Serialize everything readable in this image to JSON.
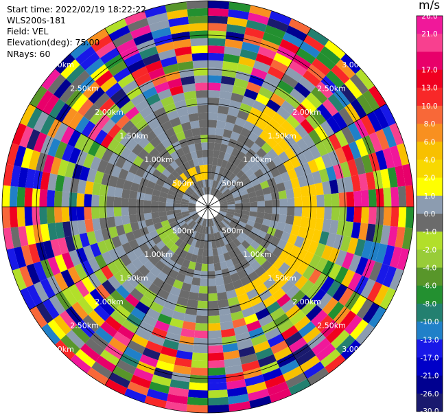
{
  "info": {
    "start_time": "Start time: 2022/02/19 18:22:22",
    "station": "WLS200s-181",
    "field": "Field: VEL",
    "elevation": "Elevation(deg): 75.00",
    "nrays": "NRays: 60"
  },
  "colorbar": {
    "unit": "m/s",
    "bins": [
      {
        "label": "26.0",
        "color": "#f0189a"
      },
      {
        "label": "21.0",
        "color": "#f8408f"
      },
      {
        "label": "",
        "color": "#e8006a"
      },
      {
        "label": "17.0",
        "color": "#f00020"
      },
      {
        "label": "13.0",
        "color": "#f82828"
      },
      {
        "label": "10.0",
        "color": "#f86838"
      },
      {
        "label": "8.0",
        "color": "#f89020"
      },
      {
        "label": "6.0",
        "color": "#f8c000"
      },
      {
        "label": "4.0",
        "color": "#f8d800"
      },
      {
        "label": "2.0",
        "color": "#ffff00"
      },
      {
        "label": "1.0",
        "color": "#8c9cb0"
      },
      {
        "label": "0.0",
        "color": "#6b6b6b"
      },
      {
        "label": "-1.0",
        "color": "#b2df2a"
      },
      {
        "label": "-2.0",
        "color": "#98cc38"
      },
      {
        "label": "-4.0",
        "color": "#58962a"
      },
      {
        "label": "-6.0",
        "color": "#239030"
      },
      {
        "label": "-8.0",
        "color": "#238070"
      },
      {
        "label": "-10.0",
        "color": "#2080c8"
      },
      {
        "label": "-13.0",
        "color": "#1818e8"
      },
      {
        "label": "-17.0",
        "color": "#0000c8"
      },
      {
        "label": "-21.0",
        "color": "#000090"
      },
      {
        "label": "-26.0",
        "color": "#1a1a6e"
      },
      {
        "label": "-30.0",
        "color": ""
      }
    ]
  },
  "chart_data": {
    "type": "polar-ppi",
    "field": "VEL",
    "units": "m/s",
    "nrays": 60,
    "elevation_deg": 75.0,
    "range_rings_km": [
      0.5,
      1.0,
      1.5,
      2.0,
      2.5,
      3.0
    ],
    "ring_labels": [
      "500m",
      "1.00km",
      "1.50km",
      "2.00km",
      "2.50km",
      "3.00km"
    ],
    "range_gates": [
      "500m",
      "1.00km",
      "1.50km",
      "2.00km",
      "2.50km",
      "3.00km"
    ],
    "spoke_azimuths_deg": [
      0,
      30,
      60,
      90,
      120,
      150,
      180,
      210,
      240,
      270,
      300,
      330
    ],
    "value_range": [
      -30.0,
      26.0
    ],
    "pattern_summary": "near-zero velocities (grey) inside about 1.5 km; light blue-grey and green patches to about 2 km; yellow band on the east side around 1.5-2 km; mixed noisy values across the full color scale beyond 2 km"
  }
}
